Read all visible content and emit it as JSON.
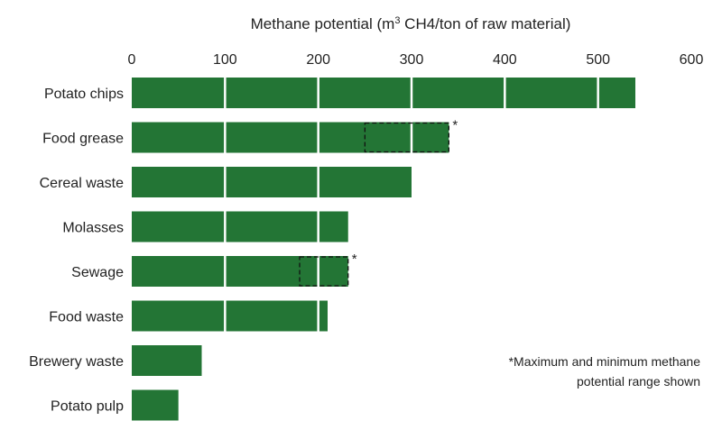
{
  "chart_data": {
    "type": "bar",
    "orientation": "horizontal",
    "title": "",
    "xlabel_parts": [
      "Methane potential (m",
      "3",
      " CH4/ton of raw material)"
    ],
    "ylabel": "",
    "xlim": [
      0,
      600
    ],
    "xticks": [
      0,
      100,
      200,
      300,
      400,
      500,
      600
    ],
    "x_axis_position": "top",
    "grid": true,
    "bar_color": "#237535",
    "categories": [
      "Potato chips",
      "Food grease",
      "Cereal waste",
      "Molasses",
      "Sewage",
      "Food waste",
      "Brewery waste",
      "Potato pulp"
    ],
    "values": [
      540,
      340,
      300,
      232,
      232,
      210,
      75,
      50
    ],
    "ranges": [
      {
        "category": "Food grease",
        "min": 250,
        "max": 340,
        "marker": "*"
      },
      {
        "category": "Sewage",
        "min": 180,
        "max": 232,
        "marker": "*"
      }
    ],
    "annotation": [
      "*Maximum and minimum methane",
      "potential range shown"
    ]
  }
}
